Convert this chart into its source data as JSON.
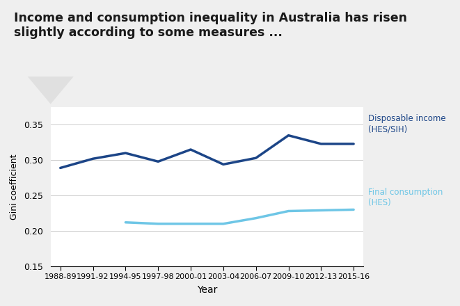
{
  "title_line1": "Income and consumption inequality in Australia has risen",
  "title_line2": "slightly according to some measures ...",
  "xlabel": "Year",
  "ylabel": "Gini coefficient",
  "ylim": [
    0.15,
    0.375
  ],
  "yticks": [
    0.15,
    0.2,
    0.25,
    0.3,
    0.35
  ],
  "xtick_labels": [
    "1988-89",
    "1991-92",
    "1994-95",
    "1997-98",
    "2000-01",
    "2003-04",
    "2006-07",
    "2009-10",
    "2012-13",
    "2015-16"
  ],
  "xtick_positions": [
    0,
    1,
    2,
    3,
    4,
    5,
    6,
    7,
    8,
    9
  ],
  "disposable_income_x": [
    0,
    1,
    2,
    3,
    4,
    5,
    6,
    7,
    8,
    9
  ],
  "disposable_income_y": [
    0.289,
    0.302,
    0.31,
    0.298,
    0.315,
    0.294,
    0.303,
    0.335,
    0.323,
    0.323
  ],
  "disposable_income_color": "#1c4587",
  "disposable_income_linewidth": 2.5,
  "disposable_income_label": "Disposable income\n(HES/SIH)",
  "final_consumption_x": [
    2,
    3,
    4,
    5,
    6,
    7,
    8,
    9
  ],
  "final_consumption_y": [
    0.212,
    0.21,
    0.21,
    0.21,
    0.218,
    0.228,
    0.229,
    0.23
  ],
  "final_consumption_color": "#6ec6e6",
  "final_consumption_linewidth": 2.5,
  "final_consumption_label": "Final consumption\n(HES)",
  "background_color": "#efefef",
  "plot_bg_color": "#ffffff",
  "title_bg_color": "#e0e0e0"
}
